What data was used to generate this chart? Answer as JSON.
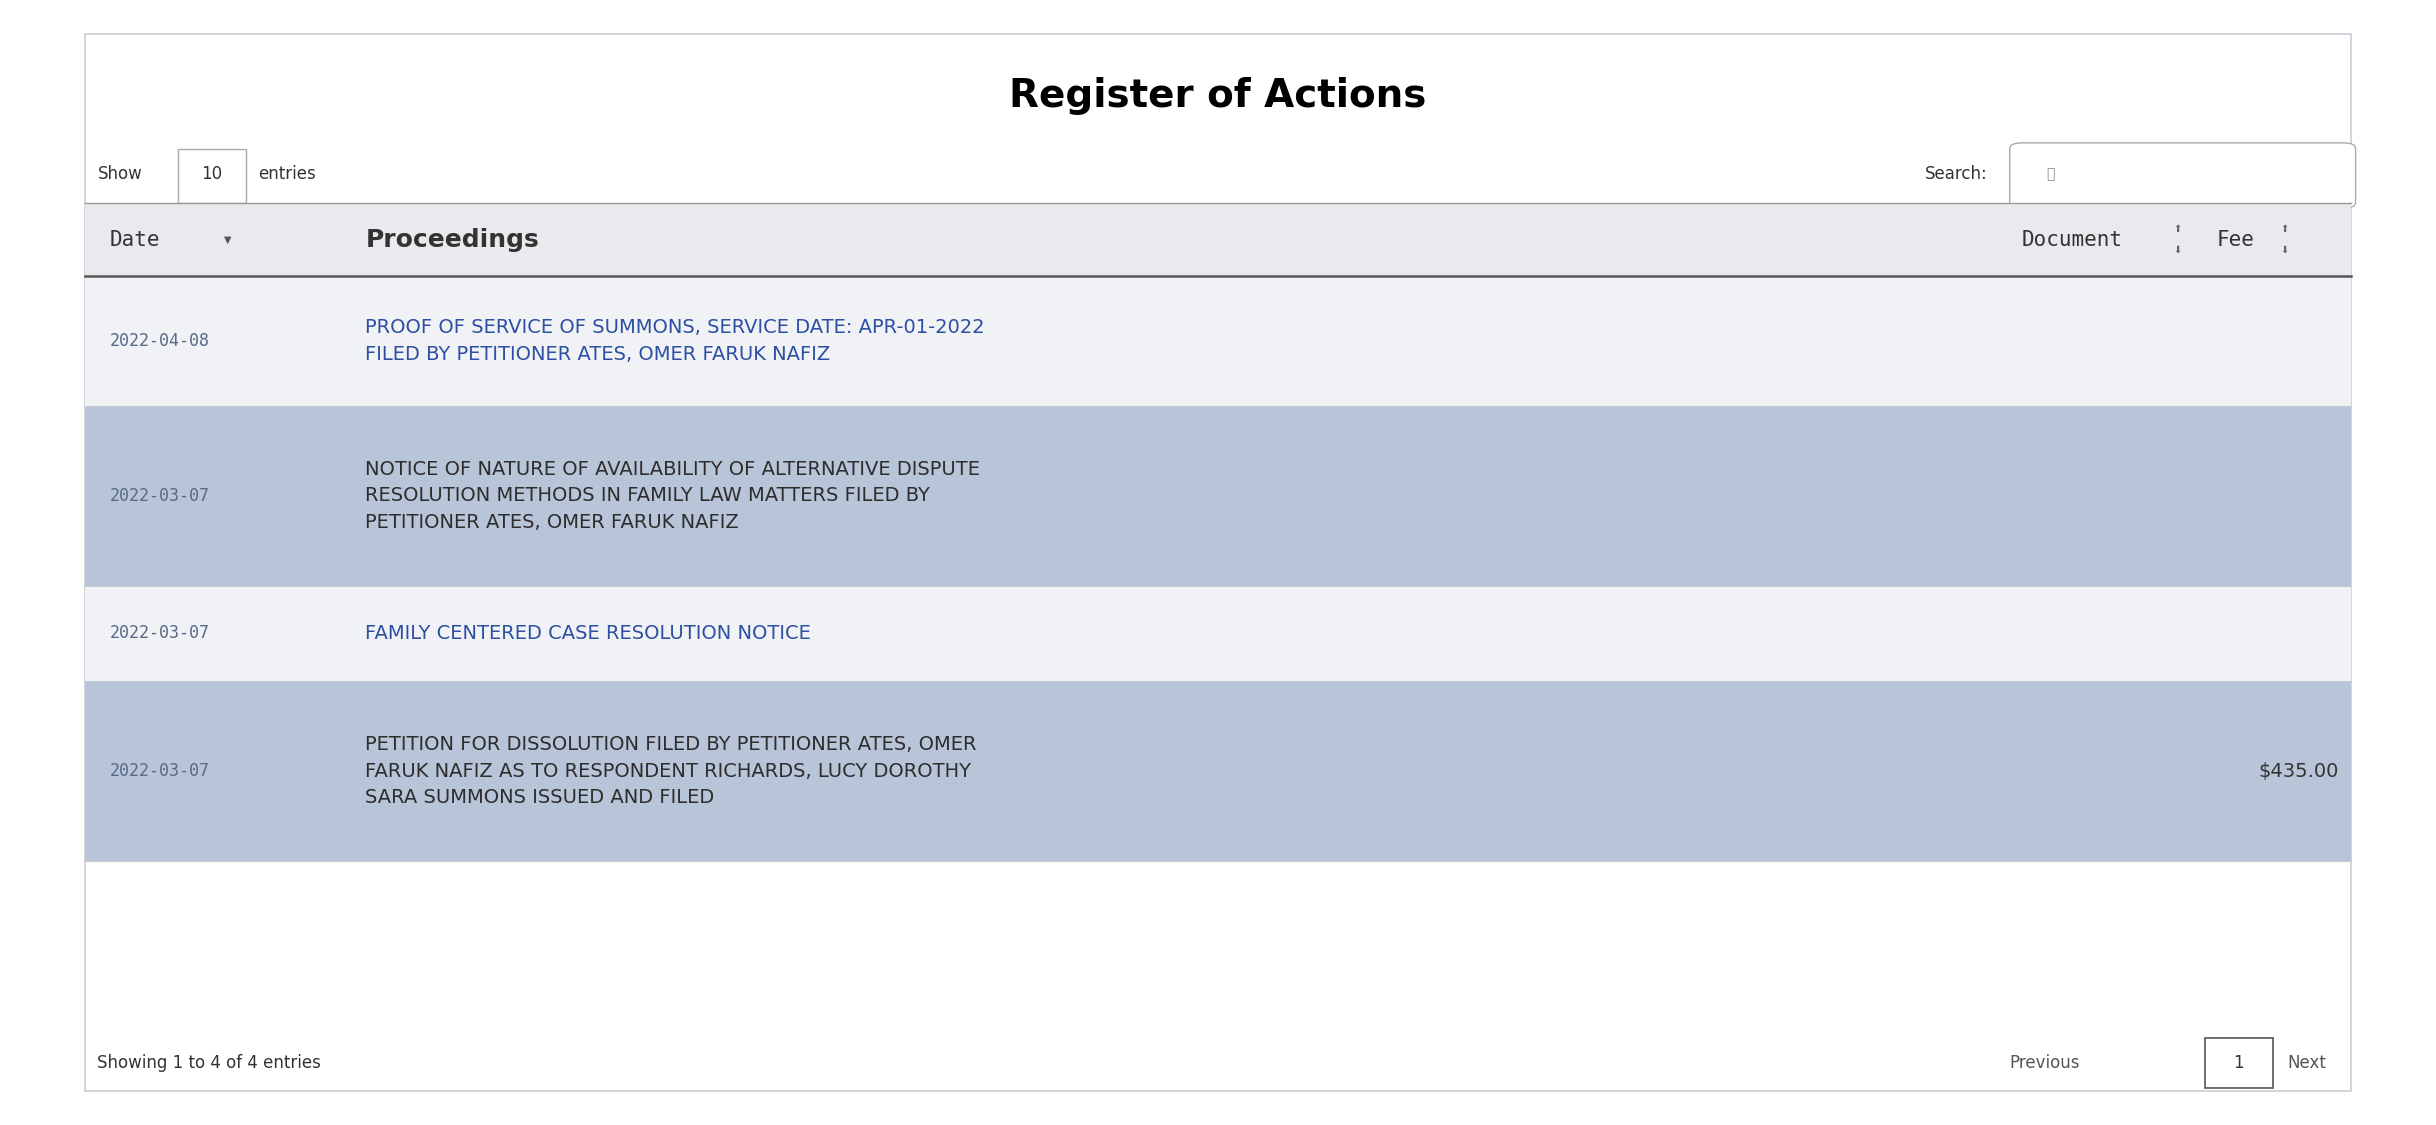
{
  "title": "Register of Actions",
  "show_label": "Show",
  "show_value": "10",
  "show_suffix": "entries",
  "search_label": "Search:",
  "col_headers": [
    "Date",
    "Proceedings",
    "Document",
    "Fee"
  ],
  "rows": [
    {
      "date": "2022-04-08",
      "proceedings": "PROOF OF SERVICE OF SUMMONS, SERVICE DATE: APR-01-2022\nFILED BY PETITIONER ATES, OMER FARUK NAFIZ",
      "proceedings_color": "#2c4fa3",
      "fee": "",
      "bg": "#f0f2f5"
    },
    {
      "date": "2022-03-07",
      "proceedings": "NOTICE OF NATURE OF AVAILABILITY OF ALTERNATIVE DISPUTE\nRESOLUTION METHODS IN FAMILY LAW MATTERS FILED BY\nPETITIONER ATES, OMER FARUK NAFIZ",
      "proceedings_color": "#2d2d2d",
      "fee": "",
      "bg": "#b8c4d8"
    },
    {
      "date": "2022-03-07",
      "proceedings": "FAMILY CENTERED CASE RESOLUTION NOTICE",
      "proceedings_color": "#2c4fa3",
      "fee": "",
      "bg": "#f0f2f5"
    },
    {
      "date": "2022-03-07",
      "proceedings": "PETITION FOR DISSOLUTION FILED BY PETITIONER ATES, OMER\nFARUK NAFIZ AS TO RESPONDENT RICHARDS, LUCY DOROTHY\nSARA SUMMONS ISSUED AND FILED",
      "proceedings_color": "#2d2d2d",
      "fee": "$435.00",
      "bg": "#b8c4d8"
    }
  ],
  "footer_left": "Showing 1 to 4 of 4 entries",
  "footer_btn_prev": "Previous",
  "footer_btn_page": "1",
  "footer_btn_next": "Next",
  "bg_outer": "#ffffff",
  "bg_table_header": "#e8eaed",
  "header_text_color": "#333333",
  "date_color": "#5a6a85",
  "border_color": "#c8cdd5",
  "title_fontsize": 28,
  "header_fontsize": 15,
  "body_fontsize": 14,
  "small_fontsize": 12
}
